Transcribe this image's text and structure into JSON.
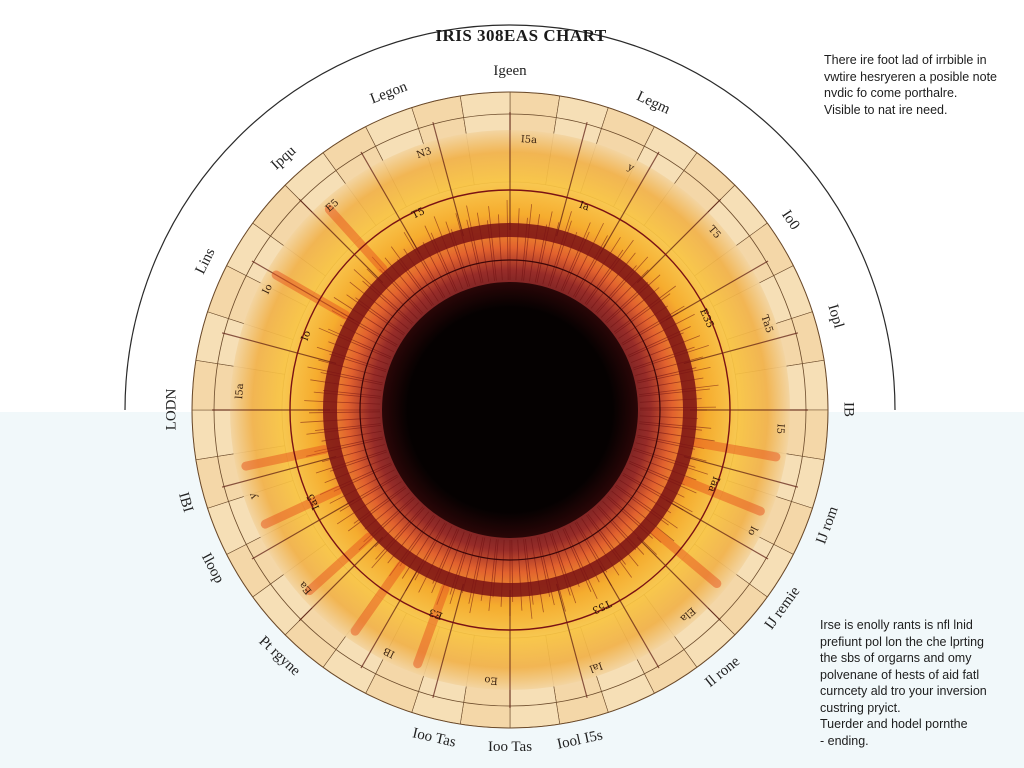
{
  "title": "IRIS 308EAS CHART",
  "note_top": [
    "There ire foot lad of irrbible in",
    "vwtire hesryeren a posible note",
    "nvdic fo come porthalre.",
    "Visible to nat ire need."
  ],
  "note_bottom": [
    "Irse is enolly rants is nfl lnid",
    "prefiunt pol lon the che lprting",
    "the sbs of orgarns and omy",
    "polvenane of hests of aid fatl",
    "curncety ald tro your inversion",
    "custring pryict.",
    "Tuerder and hodel pornthe",
    "-   ending."
  ],
  "outer_labels": [
    {
      "text": "Iloop",
      "angle": -118
    },
    {
      "text": "Pt rgyne",
      "angle": -137
    },
    {
      "text": "Ioo Tas",
      "angle": -167
    },
    {
      "text": "Ioo Tas",
      "angle": 180
    },
    {
      "text": "Iool I5s",
      "angle": 168
    },
    {
      "text": "Il rone",
      "angle": 141
    },
    {
      "text": "IJ remie",
      "angle": 126
    },
    {
      "text": "IJ rom",
      "angle": 110
    },
    {
      "text": "IB",
      "angle": 90
    },
    {
      "text": "Iopl",
      "angle": 74
    },
    {
      "text": "Io0",
      "angle": 56
    },
    {
      "text": "Legm",
      "angle": 25
    },
    {
      "text": "Igeen",
      "angle": 0
    },
    {
      "text": "Legon",
      "angle": -21
    },
    {
      "text": "Ipqu",
      "angle": -42
    },
    {
      "text": "Lins",
      "angle": -64
    },
    {
      "text": "LODN",
      "angle": -90
    },
    {
      "text": "IBI",
      "angle": -106
    }
  ],
  "zone_labels": [
    "I5a",
    "y",
    "T5",
    "Ta5",
    "I5",
    "lo",
    "Ela",
    "Ial",
    "Eo",
    "IB",
    "Ea",
    "y",
    "l5a",
    "Io",
    "E5",
    "N3"
  ],
  "band_labels": [
    "Ia",
    "E35",
    "Iaa",
    "T53",
    "E3",
    "Ia5",
    "Io",
    "T5"
  ],
  "colors": {
    "pupil": "#0a0203",
    "collarette": "#7a1214",
    "inner_ring": "#e8551f",
    "mid_ring": "#f6a21d",
    "outer_ring": "#f7c84a",
    "cells": "#f4d7a8",
    "cell_border": "#6b4a2a",
    "arc": "#2a2a2a"
  }
}
